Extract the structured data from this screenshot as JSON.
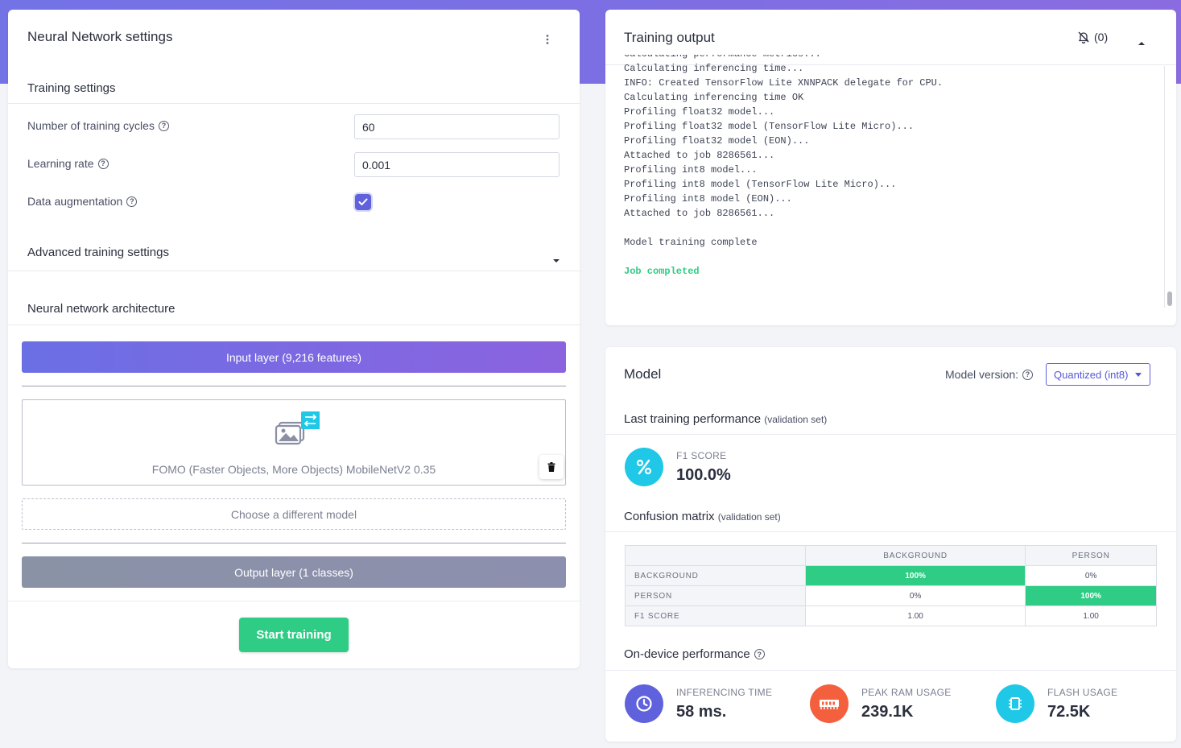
{
  "nn_settings": {
    "title": "Neural Network settings",
    "training_settings_title": "Training settings",
    "cycles_label": "Number of training cycles",
    "cycles_value": "60",
    "lr_label": "Learning rate",
    "lr_value": "0.001",
    "augmentation_label": "Data augmentation",
    "augmentation_checked": true,
    "advanced_title": "Advanced training settings",
    "architecture_title": "Neural network architecture",
    "input_layer": "Input layer (9,216 features)",
    "model_name": "FOMO (Faster Objects, More Objects) MobileNetV2 0.35",
    "choose_model": "Choose a different model",
    "output_layer": "Output layer (1 classes)",
    "start_button": "Start training"
  },
  "training_output": {
    "title": "Training output",
    "notifications": "(0)",
    "log_lines": [
      "Calculating performance metrics...",
      "Calculating inferencing time...",
      "INFO: Created TensorFlow Lite XNNPACK delegate for CPU.",
      "Calculating inferencing time OK",
      "Profiling float32 model...",
      "Profiling float32 model (TensorFlow Lite Micro)...",
      "Profiling float32 model (EON)...",
      "Attached to job 8286561...",
      "Profiling int8 model...",
      "Profiling int8 model (TensorFlow Lite Micro)...",
      "Profiling int8 model (EON)...",
      "Attached to job 8286561...",
      "",
      "Model training complete",
      ""
    ],
    "job_status": "Job completed"
  },
  "model": {
    "title": "Model",
    "version_label": "Model version:",
    "version_value": "Quantized (int8)",
    "last_perf_title": "Last training performance",
    "validation_note": "(validation set)",
    "f1_label": "F1 SCORE",
    "f1_value": "100.0%",
    "confusion_title": "Confusion matrix",
    "confusion": {
      "columns": [
        "BACKGROUND",
        "PERSON"
      ],
      "rows": [
        {
          "label": "BACKGROUND",
          "cells": [
            "100%",
            "0%"
          ]
        },
        {
          "label": "PERSON",
          "cells": [
            "0%",
            "100%"
          ]
        },
        {
          "label": "F1 SCORE",
          "cells": [
            "1.00",
            "1.00"
          ]
        }
      ]
    },
    "on_device_title": "On-device performance",
    "inferencing_label": "INFERENCING TIME",
    "inferencing_value": "58 ms.",
    "ram_label": "PEAK RAM USAGE",
    "ram_value": "239.1K",
    "flash_label": "FLASH USAGE",
    "flash_value": "72.5K"
  },
  "colors": {
    "accent": "#5f62dc",
    "success": "#2ecc84",
    "f1_circle": "#1ec8e6",
    "inferencing_circle": "#5f62dc",
    "ram_circle": "#f4603e",
    "flash_circle": "#1ec8e6"
  }
}
